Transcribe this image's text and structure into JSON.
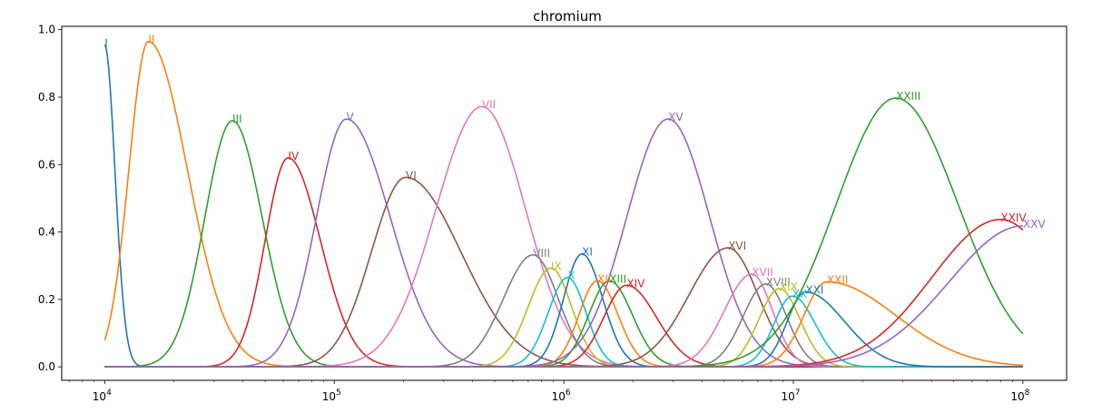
{
  "chart_data": {
    "type": "line",
    "title": "chromium",
    "xlabel": "",
    "ylabel": "",
    "x_scale": "log",
    "xlim": [
      6500,
      155000000
    ],
    "ylim": [
      -0.04,
      1.01
    ],
    "x_ticks": [
      {
        "value": 10000,
        "base": "10",
        "exp": "4"
      },
      {
        "value": 100000,
        "base": "10",
        "exp": "5"
      },
      {
        "value": 1000000,
        "base": "10",
        "exp": "6"
      },
      {
        "value": 10000000,
        "base": "10",
        "exp": "7"
      },
      {
        "value": 100000000,
        "base": "10",
        "exp": "8"
      }
    ],
    "y_ticks": [
      {
        "value": 0.0,
        "label": "0.0"
      },
      {
        "value": 0.2,
        "label": "0.2"
      },
      {
        "value": 0.4,
        "label": "0.4"
      },
      {
        "value": 0.6,
        "label": "0.6"
      },
      {
        "value": 0.8,
        "label": "0.8"
      },
      {
        "value": 1.0,
        "label": "1.0"
      }
    ],
    "grid": false,
    "legend": "none",
    "series": [
      {
        "name": "I",
        "color": "#1f77b4",
        "peak_x": 10000,
        "peak_y": 0.955,
        "width_left": 0.05,
        "width_right": 0.045
      },
      {
        "name": "II",
        "color": "#ff7f0e",
        "peak_x": 15500,
        "peak_y": 0.965,
        "width_left": 0.085,
        "width_right": 0.17
      },
      {
        "name": "III",
        "color": "#2ca02c",
        "peak_x": 36000,
        "peak_y": 0.73,
        "width_left": 0.12,
        "width_right": 0.13
      },
      {
        "name": "IV",
        "color": "#d62728",
        "peak_x": 63000,
        "peak_y": 0.62,
        "width_left": 0.1,
        "width_right": 0.14
      },
      {
        "name": "V",
        "color": "#9467bd",
        "peak_x": 113000,
        "peak_y": 0.735,
        "width_left": 0.13,
        "width_right": 0.19
      },
      {
        "name": "VI",
        "color": "#8c564b",
        "peak_x": 205000,
        "peak_y": 0.562,
        "width_left": 0.15,
        "width_right": 0.24
      },
      {
        "name": "VII",
        "color": "#e377c2",
        "peak_x": 440000,
        "peak_y": 0.772,
        "width_left": 0.2,
        "width_right": 0.19
      },
      {
        "name": "VIII",
        "color": "#7f7f7f",
        "peak_x": 735000,
        "peak_y": 0.332,
        "width_left": 0.13,
        "width_right": 0.11
      },
      {
        "name": "IX",
        "color": "#bcbd22",
        "peak_x": 880000,
        "peak_y": 0.293,
        "width_left": 0.1,
        "width_right": 0.09
      },
      {
        "name": "X",
        "color": "#17becf",
        "peak_x": 1040000,
        "peak_y": 0.265,
        "width_left": 0.085,
        "width_right": 0.08
      },
      {
        "name": "XI",
        "color": "#1f77b4",
        "peak_x": 1200000,
        "peak_y": 0.335,
        "width_left": 0.08,
        "width_right": 0.09
      },
      {
        "name": "XII",
        "color": "#ff7f0e",
        "peak_x": 1400000,
        "peak_y": 0.255,
        "width_left": 0.08,
        "width_right": 0.09
      },
      {
        "name": "XIII",
        "color": "#2ca02c",
        "peak_x": 1580000,
        "peak_y": 0.255,
        "width_left": 0.09,
        "width_right": 0.1
      },
      {
        "name": "XIV",
        "color": "#d62728",
        "peak_x": 1880000,
        "peak_y": 0.242,
        "width_left": 0.1,
        "width_right": 0.13
      },
      {
        "name": "XV",
        "color": "#9467bd",
        "peak_x": 2850000,
        "peak_y": 0.735,
        "width_left": 0.18,
        "width_right": 0.18
      },
      {
        "name": "XVI",
        "color": "#8c564b",
        "peak_x": 5200000,
        "peak_y": 0.353,
        "width_left": 0.17,
        "width_right": 0.13
      },
      {
        "name": "XVII",
        "color": "#e377c2",
        "peak_x": 6600000,
        "peak_y": 0.275,
        "width_left": 0.12,
        "width_right": 0.09
      },
      {
        "name": "XVIII",
        "color": "#7f7f7f",
        "peak_x": 7600000,
        "peak_y": 0.246,
        "width_left": 0.1,
        "width_right": 0.09
      },
      {
        "name": "XIX",
        "color": "#bcbd22",
        "peak_x": 8700000,
        "peak_y": 0.232,
        "width_left": 0.09,
        "width_right": 0.09
      },
      {
        "name": "XX",
        "color": "#17becf",
        "peak_x": 9900000,
        "peak_y": 0.21,
        "width_left": 0.08,
        "width_right": 0.1
      },
      {
        "name": "XXI",
        "color": "#1f77b4",
        "peak_x": 11300000,
        "peak_y": 0.222,
        "width_left": 0.08,
        "width_right": 0.17
      },
      {
        "name": "XXII",
        "color": "#ff7f0e",
        "peak_x": 14000000,
        "peak_y": 0.252,
        "width_left": 0.1,
        "width_right": 0.3
      },
      {
        "name": "XXIII",
        "color": "#2ca02c",
        "peak_x": 28000000,
        "peak_y": 0.797,
        "width_left": 0.26,
        "width_right": 0.27
      },
      {
        "name": "XXIV",
        "color": "#d62728",
        "peak_x": 80000000,
        "peak_y": 0.437,
        "width_left": 0.3,
        "width_right": 0.25
      },
      {
        "name": "XXV",
        "color": "#9467bd",
        "peak_x": 100000000,
        "peak_y": 0.418,
        "width_left": 0.32,
        "width_right": 0.32
      }
    ]
  }
}
